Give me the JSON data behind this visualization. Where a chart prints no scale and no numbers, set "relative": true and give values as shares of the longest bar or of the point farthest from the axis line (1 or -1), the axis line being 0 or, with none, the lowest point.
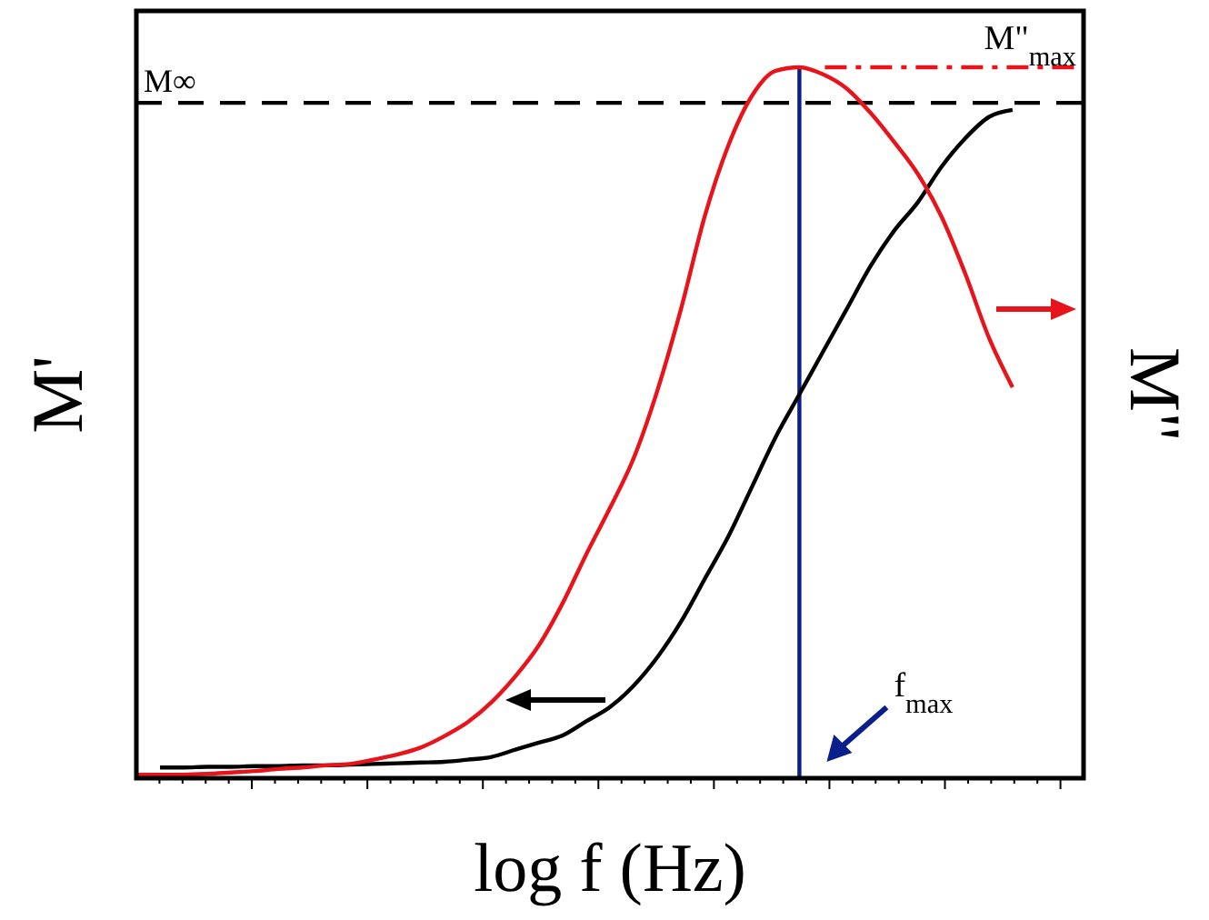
{
  "chart_data": {
    "type": "line",
    "relative": true,
    "xlabel": "log f (Hz)",
    "ylabel": "M'",
    "y2label": "M\"",
    "marker": "none",
    "line_style": "solid",
    "categories": [
      null,
      null,
      null,
      null,
      null,
      null,
      null,
      null,
      null,
      null,
      null,
      null,
      null,
      null,
      null,
      null,
      null,
      null,
      null,
      null,
      null,
      null,
      null,
      null,
      null,
      null,
      null,
      null,
      null,
      null,
      null,
      null,
      null,
      null,
      null,
      null,
      null,
      null,
      null,
      null,
      null
    ],
    "series": [
      {
        "color": "#000000",
        "values": [
          null,
          0.015,
          0.015,
          0.016,
          0.016,
          0.017,
          0.017,
          0.018,
          0.018,
          0.019,
          0.02,
          0.021,
          0.022,
          0.023,
          0.026,
          0.03,
          0.04,
          0.05,
          0.06,
          0.08,
          0.1,
          0.13,
          0.17,
          0.22,
          0.28,
          0.34,
          0.41,
          0.48,
          0.54,
          0.6,
          0.66,
          0.72,
          0.77,
          0.81,
          0.86,
          0.9,
          0.93,
          0.94,
          null,
          null,
          null
        ]
      },
      {
        "color": "#e8141b",
        "values": [
          0.005,
          0.005,
          0.005,
          0.006,
          0.008,
          0.01,
          0.013,
          0.015,
          0.018,
          0.02,
          0.026,
          0.033,
          0.043,
          0.059,
          0.079,
          0.107,
          0.143,
          0.187,
          0.246,
          0.315,
          0.38,
          0.45,
          0.545,
          0.66,
          0.79,
          0.89,
          0.96,
          0.995,
          1,
          0.99,
          0.97,
          0.936,
          0.895,
          0.85,
          0.79,
          0.71,
          0.62,
          0.55,
          null,
          null,
          null
        ]
      }
    ],
    "ref_lines": [
      {
        "axis": "y",
        "value": 0.95,
        "label": "M∞",
        "color": "#000000",
        "line_style": "dashed"
      }
    ],
    "annotations": [
      "M\"$_{max}$",
      "f$_{max}$"
    ]
  }
}
